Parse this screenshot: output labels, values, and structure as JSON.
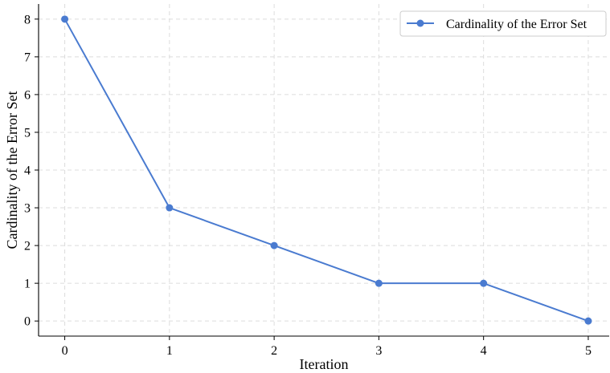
{
  "chart_data": {
    "type": "line",
    "title": "",
    "xlabel": "Iteration",
    "ylabel": "Cardinality of the Error Set",
    "x": [
      0,
      1,
      2,
      3,
      4,
      5
    ],
    "xticks": [
      "0",
      "1",
      "2",
      "3",
      "4",
      "5"
    ],
    "yticks": [
      "0",
      "1",
      "2",
      "3",
      "4",
      "5",
      "6",
      "7",
      "8"
    ],
    "xlim": [
      -0.25,
      5.2
    ],
    "ylim": [
      -0.4,
      8.4
    ],
    "grid": true,
    "legend_position": "top-right",
    "series": [
      {
        "name": "Cardinality of the Error Set",
        "color": "#4a7bd0",
        "marker": "circle",
        "values": [
          8,
          3,
          2,
          1,
          1,
          0
        ]
      }
    ]
  }
}
